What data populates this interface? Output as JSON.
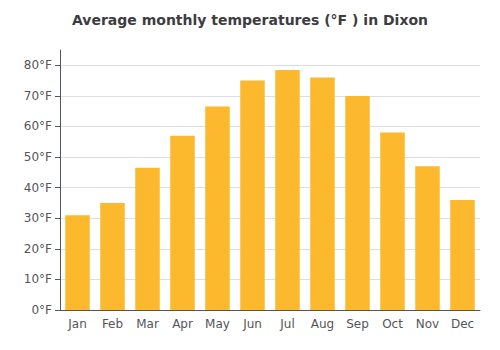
{
  "chart_data": {
    "type": "bar",
    "title": "Average monthly temperatures (°F ) in Dixon",
    "categories": [
      "Jan",
      "Feb",
      "Mar",
      "Apr",
      "May",
      "Jun",
      "Jul",
      "Aug",
      "Sep",
      "Oct",
      "Nov",
      "Dec"
    ],
    "values": [
      31,
      35,
      46.5,
      57,
      66.5,
      75,
      78.5,
      76,
      70,
      58,
      47,
      36
    ],
    "color": "#FDB92E",
    "ylim": [
      0,
      85
    ],
    "yticks": [
      {
        "value": 0,
        "label": "0°F"
      },
      {
        "value": 10,
        "label": "10°F"
      },
      {
        "value": 20,
        "label": "20°F"
      },
      {
        "value": 30,
        "label": "30°F"
      },
      {
        "value": 40,
        "label": "40°F"
      },
      {
        "value": 50,
        "label": "50°F"
      },
      {
        "value": 60,
        "label": "60°F"
      },
      {
        "value": 70,
        "label": "70°F"
      },
      {
        "value": 80,
        "label": "80°F"
      }
    ],
    "grid": true
  }
}
